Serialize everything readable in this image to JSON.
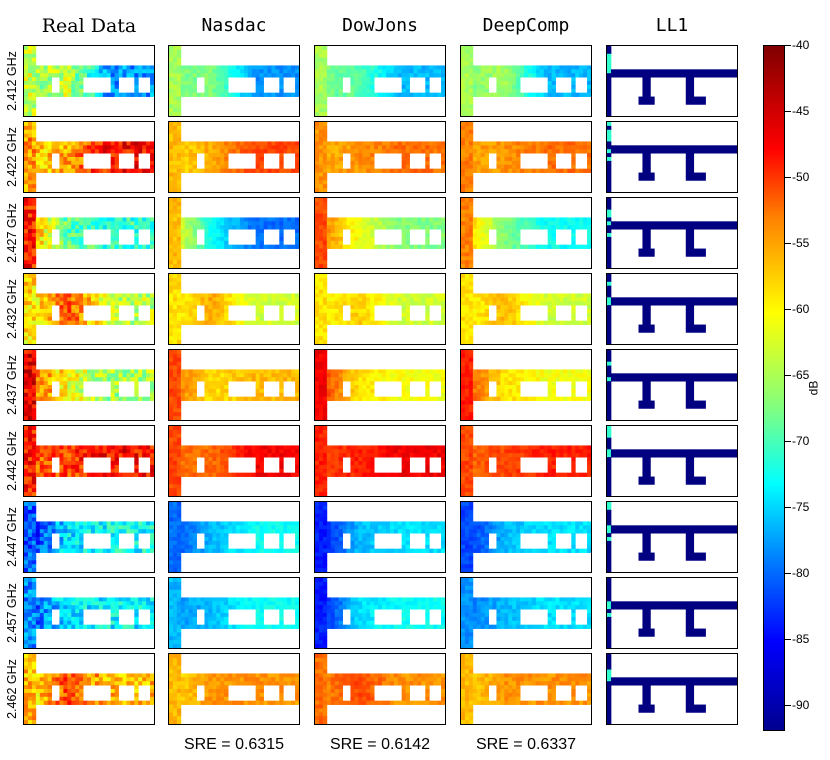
{
  "chart_data": {
    "type": "heatmap",
    "columns": [
      "Real Data",
      "Nasdac",
      "DowJons",
      "DeepComp",
      "LL1"
    ],
    "rows": [
      "2.412 GHz",
      "2.422 GHz",
      "2.427 GHz",
      "2.432 GHz",
      "2.437 GHz",
      "2.442 GHz",
      "2.447 GHz",
      "2.457 GHz",
      "2.462 GHz"
    ],
    "sre": [
      {
        "method": "Nasdac",
        "label": "SRE = 0.6315"
      },
      {
        "method": "DowJons",
        "label": "SRE = 0.6142"
      },
      {
        "method": "DeepComp",
        "label": "SRE = 0.6337"
      }
    ],
    "colorbar": {
      "unit": "dB",
      "range": [
        -92,
        -40
      ],
      "ticks": [
        -40,
        -45,
        -50,
        -55,
        -60,
        -65,
        -70,
        -75,
        -80,
        -85,
        -90
      ],
      "tick_labels": [
        "-40",
        "-45",
        "-50",
        "-55",
        "-60",
        "-65",
        "-70",
        "-75",
        "-80",
        "-85",
        "-90"
      ],
      "colormap": "jet"
    },
    "approx_levels_db": {
      "description_rows": [
        "2.412 GHz",
        "2.422 GHz",
        "2.427 GHz",
        "2.432 GHz",
        "2.437 GHz",
        "2.442 GHz",
        "2.447 GHz",
        "2.457 GHz",
        "2.462 GHz"
      ],
      "Real Data": [
        [
          -66,
          -62,
          -78
        ],
        [
          -58,
          -55,
          -47
        ],
        [
          -52,
          -68,
          -70
        ],
        [
          -62,
          -50,
          -63
        ],
        [
          -50,
          -60,
          -64
        ],
        [
          -52,
          -50,
          -47
        ],
        [
          -85,
          -74,
          -72
        ],
        [
          -82,
          -74,
          -73
        ],
        [
          -60,
          -50,
          -56
        ]
      ],
      "Nasdac": [
        [
          -66,
          -66,
          -78
        ],
        [
          -58,
          -55,
          -50
        ],
        [
          -58,
          -72,
          -80
        ],
        [
          -60,
          -55,
          -62
        ],
        [
          -52,
          -58,
          -56
        ],
        [
          -52,
          -52,
          -46
        ],
        [
          -82,
          -76,
          -72
        ],
        [
          -78,
          -76,
          -72
        ],
        [
          -58,
          -54,
          -54
        ]
      ],
      "DowJons": [
        [
          -66,
          -68,
          -76
        ],
        [
          -56,
          -54,
          -52
        ],
        [
          -52,
          -60,
          -66
        ],
        [
          -60,
          -57,
          -62
        ],
        [
          -48,
          -58,
          -60
        ],
        [
          -50,
          -48,
          -46
        ],
        [
          -86,
          -76,
          -74
        ],
        [
          -86,
          -74,
          -72
        ],
        [
          -54,
          -50,
          -54
        ]
      ],
      "DeepComp": [
        [
          -66,
          -64,
          -76
        ],
        [
          -55,
          -54,
          -52
        ],
        [
          -55,
          -66,
          -72
        ],
        [
          -60,
          -56,
          -62
        ],
        [
          -50,
          -58,
          -60
        ],
        [
          -52,
          -50,
          -48
        ],
        [
          -84,
          -76,
          -74
        ],
        [
          -80,
          -76,
          -74
        ],
        [
          -58,
          -54,
          -54
        ]
      ],
      "LL1": [
        [
          -92,
          -92,
          -92
        ],
        [
          -92,
          -92,
          -92
        ],
        [
          -92,
          -92,
          -92
        ],
        [
          -92,
          -92,
          -92
        ],
        [
          -92,
          -92,
          -92
        ],
        [
          -92,
          -92,
          -92
        ],
        [
          -92,
          -92,
          -92
        ],
        [
          -92,
          -92,
          -92
        ],
        [
          -92,
          -92,
          -92
        ]
      ]
    }
  }
}
